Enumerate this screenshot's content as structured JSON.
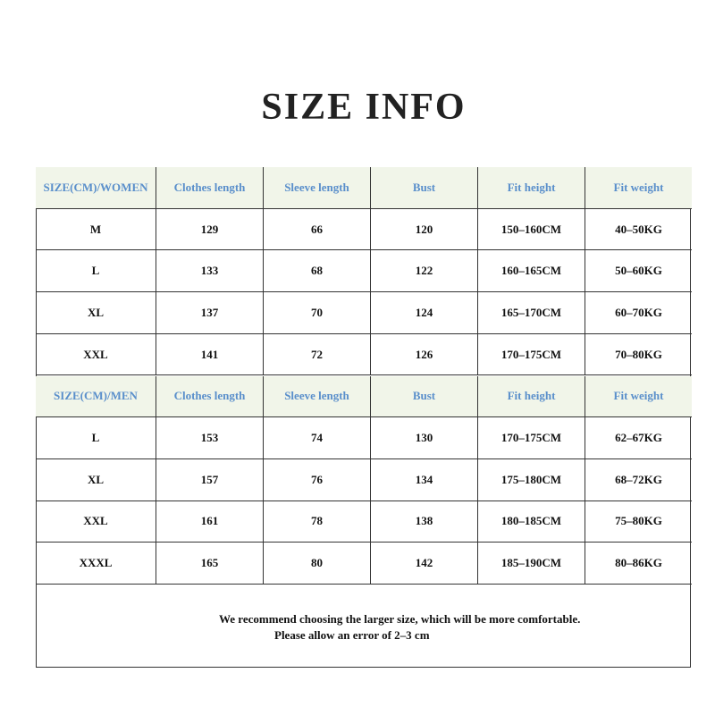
{
  "title": "SIZE INFO",
  "sections": [
    {
      "header": [
        "SIZE(CM)/WOMEN",
        "Clothes length",
        "Sleeve length",
        "Bust",
        "Fit height",
        "Fit weight"
      ],
      "rows": [
        [
          "M",
          "129",
          "66",
          "120",
          "150–160CM",
          "40–50KG"
        ],
        [
          "L",
          "133",
          "68",
          "122",
          "160–165CM",
          "50–60KG"
        ],
        [
          "XL",
          "137",
          "70",
          "124",
          "165–170CM",
          "60–70KG"
        ],
        [
          "XXL",
          "141",
          "72",
          "126",
          "170–175CM",
          "70–80KG"
        ]
      ]
    },
    {
      "header": [
        "SIZE(CM)/MEN",
        "Clothes length",
        "Sleeve length",
        "Bust",
        "Fit height",
        "Fit weight"
      ],
      "rows": [
        [
          "L",
          "153",
          "74",
          "130",
          "170–175CM",
          "62–67KG"
        ],
        [
          "XL",
          "157",
          "76",
          "134",
          "175–180CM",
          "68–72KG"
        ],
        [
          "XXL",
          "161",
          "78",
          "138",
          "180–185CM",
          "75–80KG"
        ],
        [
          "XXXL",
          "165",
          "80",
          "142",
          "185–190CM",
          "80–86KG"
        ]
      ]
    }
  ],
  "note": [
    "We recommend choosing the larger size, which will be more comfortable.",
    "Please allow an error of 2–3 cm"
  ]
}
